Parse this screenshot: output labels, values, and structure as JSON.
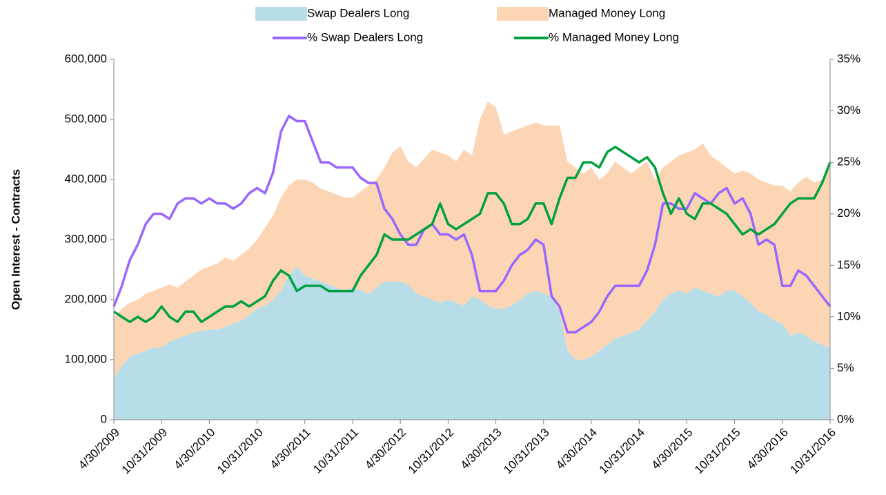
{
  "chart_data": {
    "type": "area-line",
    "y_label": "Open Interest - Contracts",
    "categories": [
      "4/30/2009",
      null,
      null,
      null,
      null,
      null,
      "10/31/2009",
      null,
      null,
      null,
      null,
      null,
      "4/30/2010",
      null,
      null,
      null,
      null,
      null,
      "10/31/2010",
      null,
      null,
      null,
      null,
      null,
      "4/30/2011",
      null,
      null,
      null,
      null,
      null,
      "10/31/2011",
      null,
      null,
      null,
      null,
      null,
      "4/30/2012",
      null,
      null,
      null,
      null,
      null,
      "10/31/2012",
      null,
      null,
      null,
      null,
      null,
      "4/30/2013",
      null,
      null,
      null,
      null,
      null,
      "10/31/2013",
      null,
      null,
      null,
      null,
      null,
      "4/30/2014",
      null,
      null,
      null,
      null,
      null,
      "10/31/2014",
      null,
      null,
      null,
      null,
      null,
      "4/30/2015",
      null,
      null,
      null,
      null,
      null,
      "10/31/2015",
      null,
      null,
      null,
      null,
      null,
      "4/30/2016",
      null,
      null,
      null,
      null,
      null,
      "10/31/2016"
    ],
    "ylim": [
      0,
      600000
    ],
    "yticks": [
      0,
      {
        "value": 100000,
        "label": "100,000"
      },
      {
        "value": 200000,
        "label": "200,000"
      },
      {
        "value": 300000,
        "label": "300,000"
      },
      {
        "value": 400000,
        "label": "400,000"
      },
      {
        "value": 500000,
        "label": "500,000"
      },
      {
        "value": 600000,
        "label": "600,000"
      }
    ],
    "y2lim": [
      0,
      35
    ],
    "y2ticks": [
      {
        "value": 0,
        "label": "0%"
      },
      {
        "value": 5,
        "label": "5%"
      },
      {
        "value": 10,
        "label": "10%"
      },
      {
        "value": 15,
        "label": "15%"
      },
      {
        "value": 20,
        "label": "20%"
      },
      {
        "value": 25,
        "label": "25%"
      },
      {
        "value": 30,
        "label": "30%"
      },
      {
        "value": 35,
        "label": "35%"
      }
    ],
    "series": [
      {
        "name": "Swap Dealers Long",
        "kind": "area",
        "color": "#b6dde8",
        "values": [
          70000,
          90000,
          105000,
          110000,
          115000,
          120000,
          120000,
          130000,
          135000,
          140000,
          145000,
          148000,
          150000,
          150000,
          155000,
          160000,
          165000,
          175000,
          185000,
          190000,
          200000,
          215000,
          240000,
          255000,
          240000,
          235000,
          230000,
          225000,
          220000,
          215000,
          220000,
          215000,
          210000,
          220000,
          230000,
          230000,
          230000,
          225000,
          210000,
          205000,
          200000,
          195000,
          200000,
          195000,
          190000,
          205000,
          200000,
          190000,
          185000,
          185000,
          190000,
          200000,
          210000,
          215000,
          210000,
          205000,
          180000,
          115000,
          100000,
          100000,
          105000,
          115000,
          125000,
          135000,
          140000,
          145000,
          150000,
          165000,
          180000,
          200000,
          210000,
          215000,
          210000,
          220000,
          215000,
          210000,
          205000,
          215000,
          215000,
          205000,
          195000,
          180000,
          175000,
          165000,
          160000,
          140000,
          145000,
          140000,
          130000,
          125000,
          120000
        ]
      },
      {
        "name": "Managed Money Long",
        "kind": "area",
        "color": "#fcd5b5",
        "values": [
          100000,
          95000,
          90000,
          90000,
          95000,
          95000,
          100000,
          95000,
          85000,
          90000,
          95000,
          102000,
          105000,
          110000,
          115000,
          105000,
          110000,
          110000,
          115000,
          130000,
          140000,
          155000,
          150000,
          145000,
          160000,
          160000,
          155000,
          155000,
          155000,
          155000,
          150000,
          165000,
          180000,
          180000,
          190000,
          215000,
          225000,
          205000,
          210000,
          230000,
          250000,
          250000,
          240000,
          235000,
          260000,
          235000,
          300000,
          340000,
          335000,
          290000,
          290000,
          285000,
          280000,
          280000,
          280000,
          285000,
          310000,
          315000,
          320000,
          310000,
          315000,
          285000,
          285000,
          295000,
          280000,
          265000,
          270000,
          265000,
          220000,
          220000,
          220000,
          225000,
          235000,
          230000,
          245000,
          230000,
          225000,
          205000,
          195000,
          210000,
          215000,
          220000,
          220000,
          225000,
          230000,
          240000,
          250000,
          265000,
          265000,
          275000,
          300000
        ]
      },
      {
        "name": "% Swap Dealers Long",
        "kind": "line",
        "axis": "y2",
        "color": "#9966ff",
        "values": [
          11,
          13,
          15.5,
          17,
          19,
          20,
          20,
          19.5,
          21,
          21.5,
          21.5,
          21,
          21.5,
          21,
          21,
          20.5,
          21,
          22,
          22.5,
          22,
          24,
          28,
          29.5,
          29,
          29,
          27,
          25,
          25,
          24.5,
          24.5,
          24.5,
          23.5,
          23,
          23,
          20.5,
          19.5,
          18,
          17,
          17,
          18.5,
          19,
          18,
          18,
          17.5,
          18,
          16,
          12.5,
          12.5,
          12.5,
          13.5,
          15,
          16,
          16.5,
          17.5,
          17,
          12,
          11,
          8.5,
          8.5,
          9,
          9.5,
          10.5,
          12,
          13,
          13,
          13,
          13,
          14.5,
          17,
          21,
          21,
          20.5,
          20.5,
          22,
          21.5,
          21,
          22,
          22.5,
          21,
          21.5,
          20,
          17,
          17.5,
          17,
          13,
          13,
          14.5,
          14,
          13,
          12,
          11
        ]
      },
      {
        "name": "% Managed Money Long",
        "kind": "line",
        "axis": "y2",
        "color": "#00a040",
        "values": [
          10.5,
          10,
          9.5,
          10,
          9.5,
          10,
          11,
          10,
          9.5,
          10.5,
          10.5,
          9.5,
          10,
          10.5,
          11,
          11,
          11.5,
          11,
          11.5,
          12,
          13.5,
          14.5,
          14,
          12.5,
          13,
          13,
          13,
          12.5,
          12.5,
          12.5,
          12.5,
          14,
          15,
          16,
          18,
          17.5,
          17.5,
          17.5,
          18,
          18.5,
          19,
          21,
          19,
          18.5,
          19,
          19.5,
          20,
          22,
          22,
          21,
          19,
          19,
          19.5,
          21,
          21,
          19,
          21.5,
          23.5,
          23.5,
          25,
          25,
          24.5,
          26,
          26.5,
          26,
          25.5,
          25,
          25.5,
          24.5,
          22,
          20,
          21.5,
          20,
          19.5,
          21,
          21,
          20.5,
          20,
          19,
          18,
          18.5,
          18,
          18.5,
          19,
          20,
          21,
          21.5,
          21.5,
          21.5,
          23,
          25
        ]
      }
    ]
  }
}
